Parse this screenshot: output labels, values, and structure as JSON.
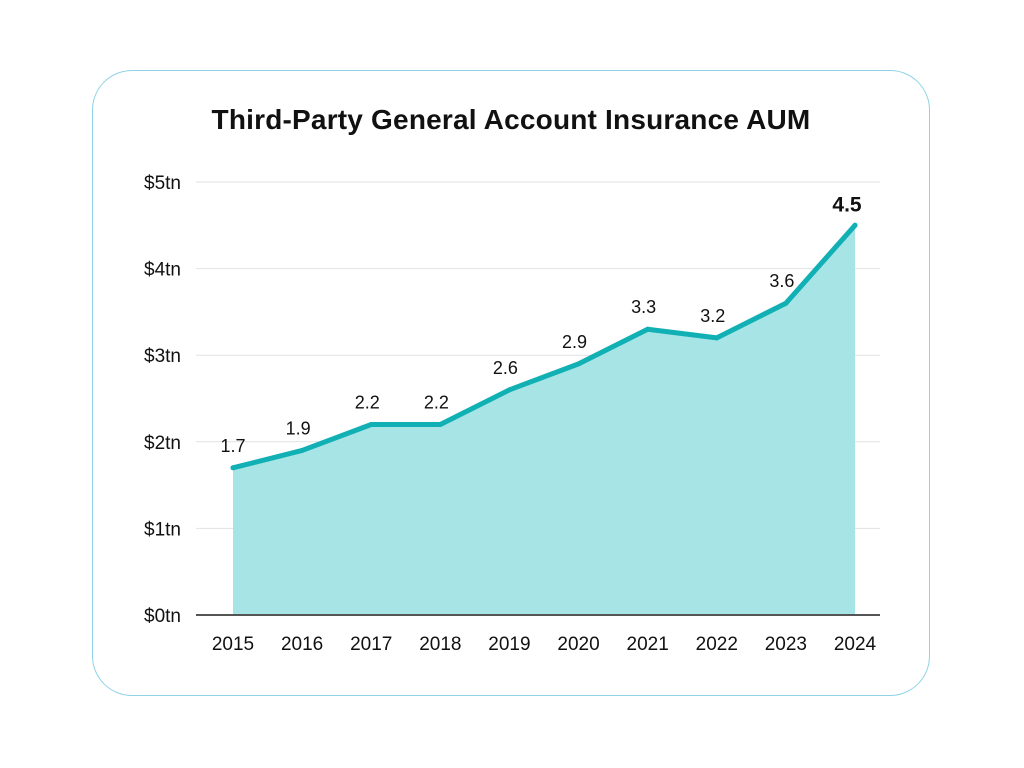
{
  "chart_data": {
    "type": "area",
    "title": "Third-Party General Account Insurance AUM",
    "xlabel": "",
    "ylabel": "",
    "categories": [
      "2015",
      "2016",
      "2017",
      "2018",
      "2019",
      "2020",
      "2021",
      "2022",
      "2023",
      "2024"
    ],
    "series": [
      {
        "values": [
          1.7,
          1.9,
          2.2,
          2.2,
          2.6,
          2.9,
          3.3,
          3.2,
          3.6,
          4.5
        ],
        "data_labels": [
          "1.7",
          "1.9",
          "2.2",
          "2.2",
          "2.6",
          "2.9",
          "3.3",
          "3.2",
          "3.6",
          "4.5"
        ]
      }
    ],
    "ylim": [
      0,
      5
    ],
    "y_ticks": [
      0,
      1,
      2,
      3,
      4,
      5
    ],
    "y_tick_labels": [
      "$0tn",
      "$1tn",
      "$2tn",
      "$3tn",
      "$4tn",
      "$5tn"
    ],
    "grid": true,
    "legend": "none",
    "emphasized_label": "4.5",
    "colors": {
      "line": "#11b0b4",
      "fill": "#a6e4e6",
      "grid": "#e2e2e2",
      "axis": "#555555",
      "card_border": "#8fd3e6"
    }
  }
}
